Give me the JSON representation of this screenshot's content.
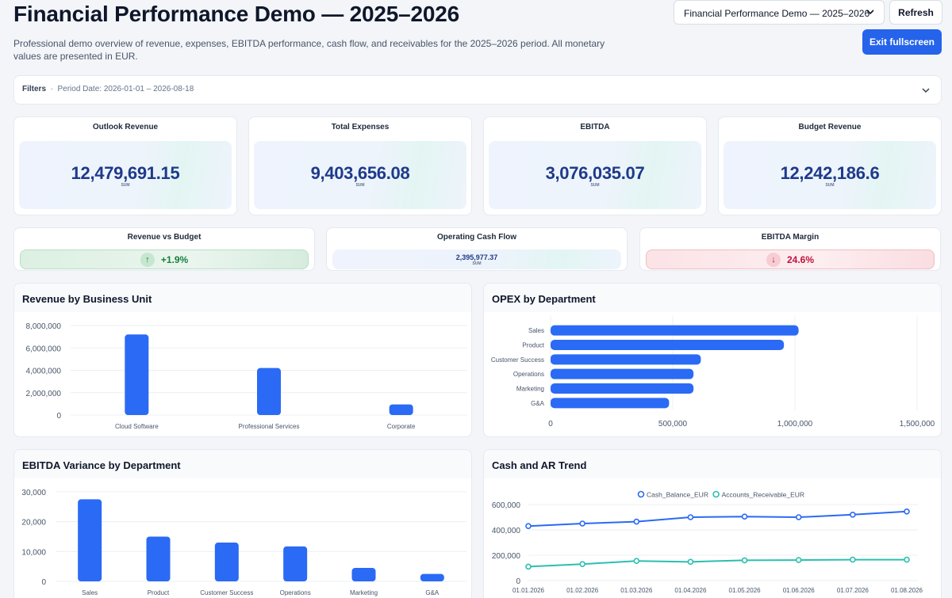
{
  "header": {
    "title": "Financial Performance Demo — 2025–2026",
    "subtitle": "Professional demo overview of revenue, expenses, EBITDA performance, cash flow, and receivables for the 2025–2026 period. All monetary values are presented in EUR.",
    "dashboard_select": "Financial Performance Demo — 2025–2026",
    "refresh_label": "Refresh",
    "exit_label": "Exit fullscreen"
  },
  "filters": {
    "label": "Filters",
    "summary": "Period Date: 2026-01-01 – 2026-08-18"
  },
  "kpis": [
    {
      "label": "Outlook Revenue",
      "value": "12,479,691.15",
      "agg": "SUM"
    },
    {
      "label": "Total Expenses",
      "value": "9,403,656.08",
      "agg": "SUM"
    },
    {
      "label": "EBITDA",
      "value": "3,076,035.07",
      "agg": "SUM"
    },
    {
      "label": "Budget Revenue",
      "value": "12,242,186.6",
      "agg": "SUM"
    }
  ],
  "kpis2": {
    "revenue_vs_budget": {
      "label": "Revenue vs Budget",
      "arrow": "↑",
      "value": "+1.9%"
    },
    "operating_cash_flow": {
      "label": "Operating Cash Flow",
      "value": "2,395,977.37",
      "agg": "SUM"
    },
    "ebitda_margin": {
      "label": "EBITDA Margin",
      "arrow": "↓",
      "value": "24.6%"
    }
  },
  "colors": {
    "accent": "#2563eb",
    "bar": "#2a6af5",
    "teal": "#2bbfb0",
    "kpi_value": "#1e3a8a"
  },
  "chart_data": [
    {
      "type": "bar",
      "title": "Revenue by Business Unit",
      "categories": [
        "Cloud Software",
        "Professional Services",
        "Corporate"
      ],
      "values": [
        7200000,
        4200000,
        950000
      ],
      "yticks": [
        "8,000,000",
        "6,000,000",
        "4,000,000",
        "2,000,000",
        "0"
      ],
      "ylim": [
        0,
        8000000
      ],
      "grid": true
    },
    {
      "type": "bar",
      "orientation": "horizontal",
      "title": "OPEX by Department",
      "categories": [
        "Sales",
        "Product",
        "Customer Success",
        "Operations",
        "Marketing",
        "G&A"
      ],
      "values": [
        1015000,
        955000,
        615000,
        585000,
        585000,
        485000
      ],
      "xticks": [
        "0",
        "500,000",
        "1,000,000",
        "1,500,000"
      ],
      "xlim": [
        0,
        1500000
      ],
      "grid": true
    },
    {
      "type": "bar",
      "title": "EBITDA Variance by Department",
      "categories": [
        "Sales",
        "Product",
        "Customer Success",
        "Operations",
        "Marketing",
        "G&A"
      ],
      "values": [
        27500,
        15000,
        13000,
        11700,
        4500,
        2500
      ],
      "yticks": [
        "30,000",
        "20,000",
        "10,000",
        "0"
      ],
      "ylim": [
        0,
        30000
      ],
      "grid": true
    },
    {
      "type": "line",
      "title": "Cash and AR Trend",
      "x": [
        "01.01.2026",
        "01.02.2026",
        "01.03.2026",
        "01.04.2026",
        "01.05.2026",
        "01.06.2026",
        "01.07.2026",
        "01.08.2026"
      ],
      "series": [
        {
          "name": "Cash_Balance_EUR",
          "color": "#2a6af5",
          "values": [
            430000,
            450000,
            465000,
            500000,
            505000,
            500000,
            520000,
            545000
          ]
        },
        {
          "name": "Accounts_Receivable_EUR",
          "color": "#2bbfb0",
          "values": [
            110000,
            130000,
            155000,
            148000,
            160000,
            162000,
            165000,
            165000
          ]
        }
      ],
      "yticks": [
        "600,000",
        "400,000",
        "200,000",
        "0"
      ],
      "ylim": [
        0,
        600000
      ],
      "legend": "top-center",
      "grid": true
    }
  ]
}
